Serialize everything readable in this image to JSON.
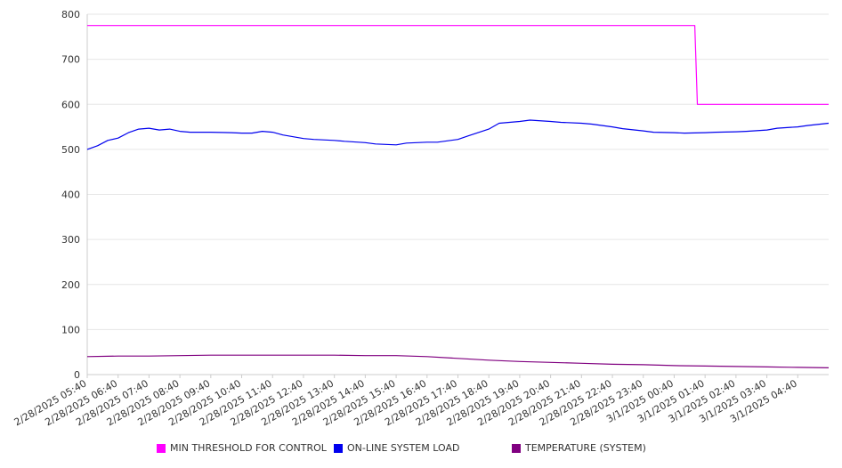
{
  "colors": {
    "threshold": "#ff00ff",
    "load": "#0000ee",
    "temperature": "#800080",
    "grid": "#e6e6e6",
    "axis": "#cccccc"
  },
  "chart_data": {
    "type": "line",
    "ylim": [
      0,
      800
    ],
    "yticks": [
      0,
      100,
      200,
      300,
      400,
      500,
      600,
      700,
      800
    ],
    "grid": true,
    "legend_position": "bottom",
    "x_tick_labels": [
      "2/28/2025 05:40",
      "2/28/2025 06:40",
      "2/28/2025 07:40",
      "2/28/2025 08:40",
      "2/28/2025 09:40",
      "2/28/2025 10:40",
      "2/28/2025 11:40",
      "2/28/2025 12:40",
      "2/28/2025 13:40",
      "2/28/2025 14:40",
      "2/28/2025 15:40",
      "2/28/2025 16:40",
      "2/28/2025 17:40",
      "2/28/2025 18:40",
      "2/28/2025 19:40",
      "2/28/2025 20:40",
      "2/28/2025 21:40",
      "2/28/2025 22:40",
      "2/28/2025 23:40",
      "3/1/2025 00:40",
      "3/1/2025 01:40",
      "3/1/2025 02:40",
      "3/1/2025 03:40",
      "3/1/2025 04:40"
    ],
    "x_end": "3/1/2025 05:40",
    "series": [
      {
        "name": "MIN THRESHOLD FOR CONTROL",
        "color_key": "threshold",
        "points": [
          [
            "2/28/2025 05:40",
            775
          ],
          [
            "3/1/2025 01:20",
            775
          ],
          [
            "3/1/2025 01:25",
            600
          ],
          [
            "3/1/2025 05:40",
            600
          ]
        ]
      },
      {
        "name": "ON-LINE SYSTEM LOAD",
        "color_key": "load",
        "points": [
          [
            "2/28/2025 05:40",
            500
          ],
          [
            "2/28/2025 06:00",
            508
          ],
          [
            "2/28/2025 06:20",
            520
          ],
          [
            "2/28/2025 06:40",
            525
          ],
          [
            "2/28/2025 07:00",
            537
          ],
          [
            "2/28/2025 07:20",
            545
          ],
          [
            "2/28/2025 07:40",
            547
          ],
          [
            "2/28/2025 08:00",
            543
          ],
          [
            "2/28/2025 08:20",
            545
          ],
          [
            "2/28/2025 08:40",
            540
          ],
          [
            "2/28/2025 09:00",
            538
          ],
          [
            "2/28/2025 09:40",
            538
          ],
          [
            "2/28/2025 10:20",
            537
          ],
          [
            "2/28/2025 10:40",
            536
          ],
          [
            "2/28/2025 11:00",
            536
          ],
          [
            "2/28/2025 11:20",
            540
          ],
          [
            "2/28/2025 11:40",
            538
          ],
          [
            "2/28/2025 12:00",
            532
          ],
          [
            "2/28/2025 12:40",
            524
          ],
          [
            "2/28/2025 13:00",
            522
          ],
          [
            "2/28/2025 13:40",
            520
          ],
          [
            "2/28/2025 14:00",
            518
          ],
          [
            "2/28/2025 14:40",
            515
          ],
          [
            "2/28/2025 15:00",
            512
          ],
          [
            "2/28/2025 15:40",
            510
          ],
          [
            "2/28/2025 16:00",
            514
          ],
          [
            "2/28/2025 16:40",
            516
          ],
          [
            "2/28/2025 17:00",
            516
          ],
          [
            "2/28/2025 17:40",
            522
          ],
          [
            "2/28/2025 18:00",
            530
          ],
          [
            "2/28/2025 18:40",
            545
          ],
          [
            "2/28/2025 19:00",
            558
          ],
          [
            "2/28/2025 19:40",
            562
          ],
          [
            "2/28/2025 20:00",
            565
          ],
          [
            "2/28/2025 20:40",
            562
          ],
          [
            "2/28/2025 21:00",
            560
          ],
          [
            "2/28/2025 21:40",
            558
          ],
          [
            "2/28/2025 22:00",
            556
          ],
          [
            "2/28/2025 22:40",
            550
          ],
          [
            "2/28/2025 23:00",
            546
          ],
          [
            "2/28/2025 23:40",
            541
          ],
          [
            "3/1/2025 00:00",
            538
          ],
          [
            "3/1/2025 00:40",
            537
          ],
          [
            "3/1/2025 01:00",
            536
          ],
          [
            "3/1/2025 01:40",
            537
          ],
          [
            "3/1/2025 02:00",
            538
          ],
          [
            "3/1/2025 02:40",
            539
          ],
          [
            "3/1/2025 03:00",
            540
          ],
          [
            "3/1/2025 03:40",
            543
          ],
          [
            "3/1/2025 04:00",
            547
          ],
          [
            "3/1/2025 04:40",
            550
          ],
          [
            "3/1/2025 05:00",
            553
          ],
          [
            "3/1/2025 05:40",
            558
          ]
        ]
      },
      {
        "name": "TEMPERATURE (SYSTEM)",
        "color_key": "temperature",
        "points": [
          [
            "2/28/2025 05:40",
            40
          ],
          [
            "2/28/2025 06:40",
            41
          ],
          [
            "2/28/2025 07:40",
            41
          ],
          [
            "2/28/2025 08:40",
            42
          ],
          [
            "2/28/2025 09:40",
            43
          ],
          [
            "2/28/2025 10:40",
            43
          ],
          [
            "2/28/2025 11:40",
            43
          ],
          [
            "2/28/2025 12:40",
            43
          ],
          [
            "2/28/2025 13:40",
            43
          ],
          [
            "2/28/2025 14:40",
            42
          ],
          [
            "2/28/2025 15:40",
            42
          ],
          [
            "2/28/2025 16:40",
            40
          ],
          [
            "2/28/2025 17:40",
            36
          ],
          [
            "2/28/2025 18:40",
            32
          ],
          [
            "2/28/2025 19:40",
            29
          ],
          [
            "2/28/2025 20:40",
            27
          ],
          [
            "2/28/2025 21:40",
            25
          ],
          [
            "2/28/2025 22:40",
            23
          ],
          [
            "2/28/2025 23:40",
            22
          ],
          [
            "3/1/2025 00:40",
            20
          ],
          [
            "3/1/2025 01:40",
            19
          ],
          [
            "3/1/2025 02:40",
            18
          ],
          [
            "3/1/2025 03:40",
            17
          ],
          [
            "3/1/2025 04:40",
            16
          ],
          [
            "3/1/2025 05:40",
            15
          ]
        ]
      }
    ]
  }
}
